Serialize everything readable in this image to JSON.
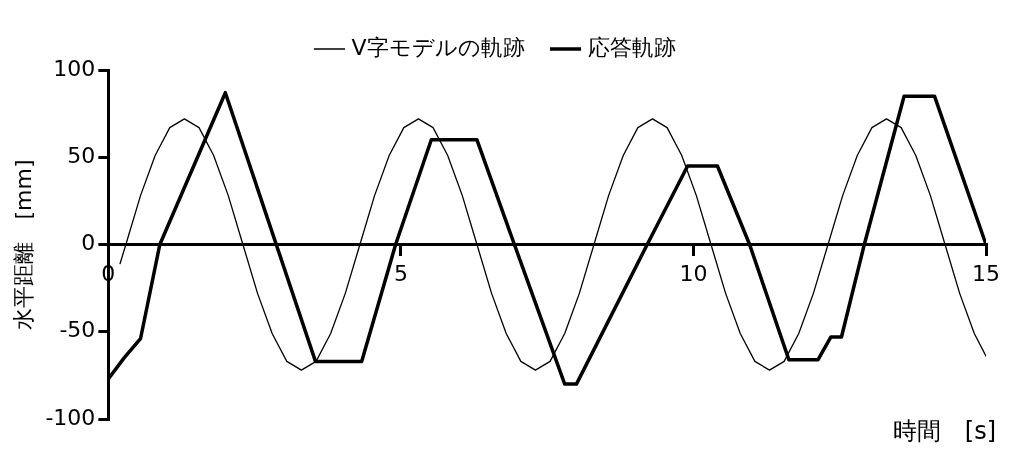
{
  "chart_data": {
    "type": "line",
    "xlabel": "時間　[s]",
    "ylabel": "水平距離　[mm]",
    "xlim": [
      0,
      15
    ],
    "xticks": [
      0,
      5,
      10,
      15
    ],
    "ylim": [
      -100,
      100
    ],
    "yticks": [
      -100,
      -50,
      0,
      50,
      100
    ],
    "grid": false,
    "legend": "top",
    "marker": "none",
    "line_style": "solid",
    "series": [
      {
        "name": "V字モデルの軌跡",
        "color": "#000000",
        "x": [
          0.2,
          0.3,
          0.55,
          0.8,
          1.05,
          1.3,
          1.55,
          1.8,
          2.05,
          2.3,
          2.55,
          2.8,
          3.05,
          3.3,
          3.55,
          3.8,
          4.05,
          4.3,
          4.55,
          4.8,
          5.05,
          5.3,
          5.55,
          5.8,
          6.05,
          6.3,
          6.55,
          6.8,
          7.05,
          7.3,
          7.55,
          7.8,
          8.05,
          8.3,
          8.55,
          8.8,
          9.05,
          9.3,
          9.55,
          9.8,
          10.05,
          10.3,
          10.55,
          10.8,
          11.05,
          11.3,
          11.55,
          11.8,
          12.05,
          12.3,
          12.55,
          12.8,
          13.05,
          13.3,
          13.55,
          13.8,
          14.05,
          14.3,
          14.55,
          14.8,
          15.0
        ],
        "values": [
          -11,
          0,
          28,
          51,
          67,
          72,
          67,
          51,
          28,
          0,
          -28,
          -51,
          -67,
          -72,
          -67,
          -51,
          -28,
          0,
          28,
          51,
          67,
          72,
          67,
          51,
          28,
          0,
          -28,
          -51,
          -67,
          -72,
          -67,
          -51,
          -28,
          0,
          28,
          51,
          67,
          72,
          67,
          51,
          28,
          0,
          -28,
          -51,
          -67,
          -72,
          -67,
          -51,
          -28,
          0,
          28,
          51,
          67,
          72,
          67,
          51,
          28,
          0,
          -28,
          -51,
          -64
        ]
      },
      {
        "name": "応答軌跡",
        "color": "#000000",
        "x": [
          0,
          0.27,
          0.55,
          0.88,
          2.0,
          3.54,
          4.33,
          4.91,
          5.52,
          6.3,
          6.94,
          7.8,
          8.0,
          9.21,
          9.9,
          10.41,
          10.96,
          11.63,
          12.13,
          12.35,
          12.53,
          12.92,
          13.6,
          14.12,
          15.0
        ],
        "values": [
          -77,
          -65,
          -54,
          0,
          87,
          -67,
          -67,
          0,
          60,
          60,
          0,
          -80,
          -80,
          0,
          45,
          45,
          0,
          -66,
          -66,
          -53,
          -53,
          0,
          85,
          85,
          0
        ]
      }
    ]
  }
}
